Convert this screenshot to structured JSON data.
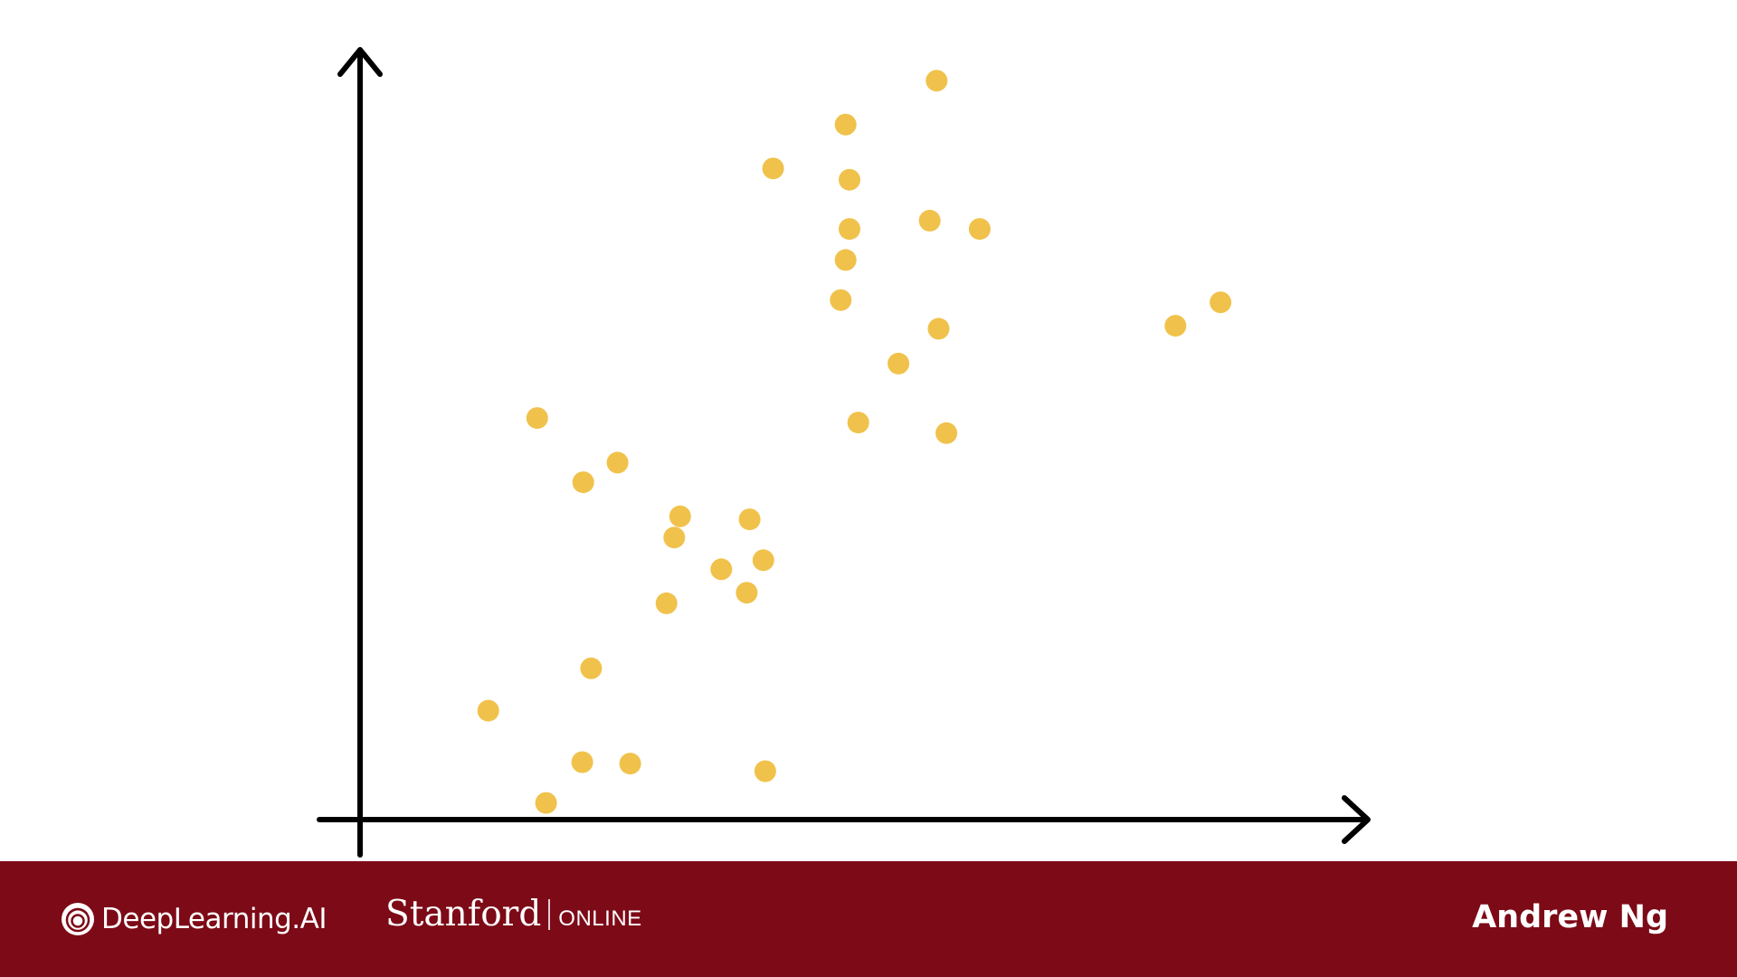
{
  "colors": {
    "footer_bg": "#7d0a17",
    "point": "#f0c24b",
    "axis": "#000000",
    "text": "#ffffff"
  },
  "footer": {
    "brand_deeplearning": "DeepLearning.AI",
    "brand_stanford": "Stanford",
    "brand_online": "ONLINE",
    "presenter": "Andrew Ng"
  },
  "chart_data": {
    "type": "scatter",
    "title": "",
    "xlabel": "",
    "ylabel": "",
    "grid": false,
    "legend": "none",
    "xlim": [
      0,
      100
    ],
    "ylim": [
      0,
      100
    ],
    "series": [
      {
        "points": [
          [
            18.1,
            53.1
          ],
          [
            22.8,
            44.6
          ],
          [
            26.3,
            47.2
          ],
          [
            32.7,
            40.1
          ],
          [
            32.1,
            37.3
          ],
          [
            39.8,
            39.7
          ],
          [
            36.9,
            33.1
          ],
          [
            41.2,
            34.3
          ],
          [
            39.5,
            30.0
          ],
          [
            31.3,
            28.6
          ],
          [
            23.6,
            20.0
          ],
          [
            13.1,
            14.4
          ],
          [
            22.7,
            7.6
          ],
          [
            27.6,
            7.4
          ],
          [
            41.4,
            6.4
          ],
          [
            19.0,
            2.2
          ],
          [
            42.2,
            86.1
          ],
          [
            49.6,
            91.9
          ],
          [
            50.0,
            84.6
          ],
          [
            50.0,
            78.1
          ],
          [
            49.6,
            74.0
          ],
          [
            49.1,
            68.7
          ],
          [
            58.9,
            97.7
          ],
          [
            58.2,
            79.2
          ],
          [
            63.3,
            78.1
          ],
          [
            59.1,
            64.9
          ],
          [
            55.0,
            60.3
          ],
          [
            50.9,
            52.5
          ],
          [
            59.9,
            51.1
          ],
          [
            83.3,
            65.3
          ],
          [
            87.9,
            68.4
          ]
        ]
      }
    ]
  }
}
